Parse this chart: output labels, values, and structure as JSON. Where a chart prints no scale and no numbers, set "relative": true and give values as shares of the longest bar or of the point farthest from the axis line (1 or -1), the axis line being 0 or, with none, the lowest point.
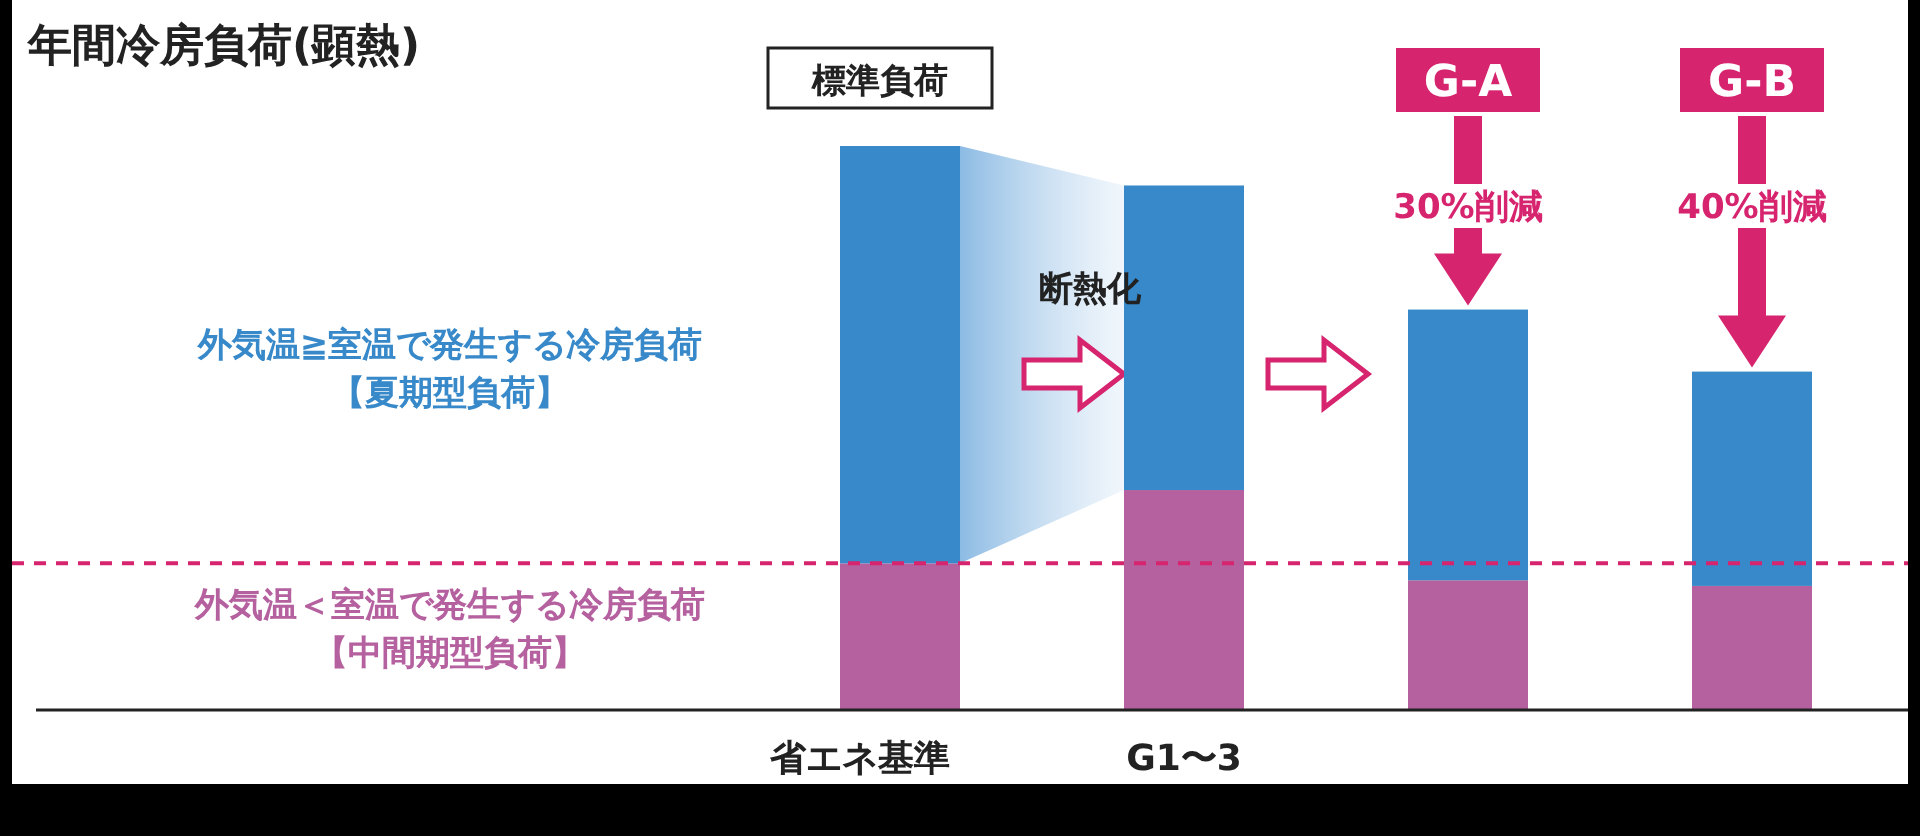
{
  "chart_data": {
    "type": "bar",
    "title": "年間冷房負荷(顕熱)",
    "relative": true,
    "stacked": true,
    "categories": [
      "省エネ基準",
      "G1〜3",
      "G-A",
      "G-B"
    ],
    "series": [
      {
        "name": "外気温＜室温で発生する冷房負荷【中間期型負荷】",
        "color": "#b5609f",
        "values": [
          0.26,
          0.39,
          0.23,
          0.22
        ]
      },
      {
        "name": "外気温≧室温で発生する冷房負荷【夏期型負荷】",
        "color": "#3889c9",
        "values": [
          0.74,
          0.54,
          0.48,
          0.38
        ]
      }
    ],
    "ref_lines": [
      {
        "axis": "y",
        "value": 0.26,
        "color": "#d6246e",
        "line_style": "dashed"
      }
    ],
    "annotations": [
      "標準負荷",
      "断熱化",
      "30%削減",
      "40%削減"
    ]
  }
}
